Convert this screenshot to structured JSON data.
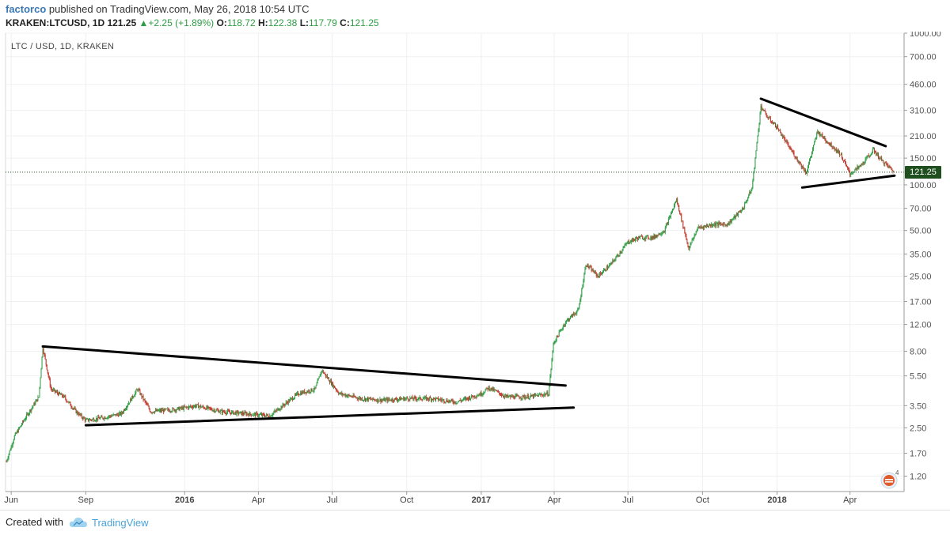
{
  "header": {
    "author": "factorco",
    "publish_text": "published on TradingView.com, May 26, 2018 10:54 UTC",
    "symbol": "KRAKEN:LTCUSD, 1D",
    "last": "121.25",
    "change": "+2.25 (+1.89%)",
    "open_label": "O:",
    "open": "118.72",
    "high_label": "H:",
    "high": "122.38",
    "low_label": "L:",
    "low": "117.79",
    "close_label": "C:",
    "close": "121.25"
  },
  "footer": {
    "created_with": "Created with",
    "brand": "TradingView"
  },
  "colors": {
    "up": "#2e9e45",
    "down": "#c0392b",
    "author": "#3a78b5",
    "brand": "#4aa3d9",
    "price_tag": "#1f4e1f"
  },
  "chart_data": {
    "type": "line",
    "title": "LTC / USD, 1D, KRAKEN",
    "yscale": "log",
    "ylim": [
      0.95,
      1000
    ],
    "y_ticks": [
      "1000.00",
      "700.00",
      "460.00",
      "310.00",
      "210.00",
      "150.00",
      "100.00",
      "70.00",
      "50.00",
      "35.00",
      "25.00",
      "17.00",
      "12.00",
      "8.00",
      "5.50",
      "3.50",
      "2.50",
      "1.70",
      "1.20"
    ],
    "y_tick_values": [
      1000,
      700,
      460,
      310,
      210,
      150,
      100,
      70,
      50,
      35,
      25,
      17,
      12,
      8,
      5.5,
      3.5,
      2.5,
      1.7,
      1.2
    ],
    "x_ticks": [
      "Jun",
      "Sep",
      "2016",
      "Apr",
      "Jul",
      "Oct",
      "2017",
      "Apr",
      "Jul",
      "Oct",
      "2018",
      "Apr"
    ],
    "x_tick_dates": [
      "2015-06-01",
      "2015-09-01",
      "2016-01-01",
      "2016-04-01",
      "2016-07-01",
      "2016-10-01",
      "2017-01-01",
      "2017-04-01",
      "2017-07-01",
      "2017-10-01",
      "2018-01-01",
      "2018-04-01"
    ],
    "x_range": [
      "2015-05-25",
      "2018-05-26"
    ],
    "current_price": "121.25",
    "series": [
      {
        "values_note": "",
        "x": [
          "2015-05-26",
          "2015-06-05",
          "2015-06-20",
          "2015-07-05",
          "2015-07-10",
          "2015-07-20",
          "2015-08-05",
          "2015-08-20",
          "2015-09-01",
          "2015-09-20",
          "2015-10-15",
          "2015-11-04",
          "2015-11-20",
          "2015-12-20",
          "2016-01-15",
          "2016-02-15",
          "2016-03-15",
          "2016-04-15",
          "2016-05-20",
          "2016-06-10",
          "2016-06-18",
          "2016-07-10",
          "2016-08-05",
          "2016-09-01",
          "2016-10-01",
          "2016-11-01",
          "2016-12-01",
          "2017-01-01",
          "2017-01-10",
          "2017-02-01",
          "2017-03-01",
          "2017-03-25",
          "2017-03-31",
          "2017-04-15",
          "2017-05-01",
          "2017-05-10",
          "2017-05-25",
          "2017-06-10",
          "2017-07-01",
          "2017-07-15",
          "2017-08-01",
          "2017-08-15",
          "2017-08-30",
          "2017-09-14",
          "2017-09-25",
          "2017-10-15",
          "2017-11-01",
          "2017-11-20",
          "2017-12-01",
          "2017-12-12",
          "2017-12-20",
          "2018-01-01",
          "2018-01-15",
          "2018-02-06",
          "2018-02-20",
          "2018-03-01",
          "2018-03-20",
          "2018-04-01",
          "2018-04-15",
          "2018-04-30",
          "2018-05-10",
          "2018-05-26"
        ],
        "values": [
          1.5,
          2.2,
          3.0,
          4.0,
          8.5,
          4.5,
          4.0,
          3.2,
          2.8,
          2.9,
          3.1,
          4.5,
          3.2,
          3.3,
          3.5,
          3.2,
          3.1,
          3.0,
          4.2,
          4.5,
          6.0,
          4.2,
          3.9,
          3.8,
          3.9,
          3.9,
          3.7,
          4.2,
          4.6,
          4.0,
          4.0,
          4.2,
          9.0,
          12.5,
          15.0,
          30.0,
          25.0,
          30.0,
          42.0,
          45.0,
          45.0,
          50.0,
          80.0,
          38.0,
          52.0,
          55.0,
          55.0,
          70.0,
          95.0,
          330.0,
          280.0,
          240.0,
          180.0,
          120.0,
          225.0,
          200.0,
          160.0,
          118.0,
          135.0,
          170.0,
          145.0,
          121.25
        ]
      }
    ],
    "trendlines": [
      {
        "from": [
          "2015-07-10",
          8.6
        ],
        "to": [
          "2017-04-15",
          4.75
        ]
      },
      {
        "from": [
          "2015-09-01",
          2.6
        ],
        "to": [
          "2017-04-25",
          3.4
        ]
      },
      {
        "from": [
          "2017-12-12",
          370
        ],
        "to": [
          "2018-05-15",
          180
        ]
      },
      {
        "from": [
          "2018-02-01",
          96
        ],
        "to": [
          "2018-05-26",
          115
        ]
      }
    ],
    "grid": true,
    "legend": "none"
  }
}
